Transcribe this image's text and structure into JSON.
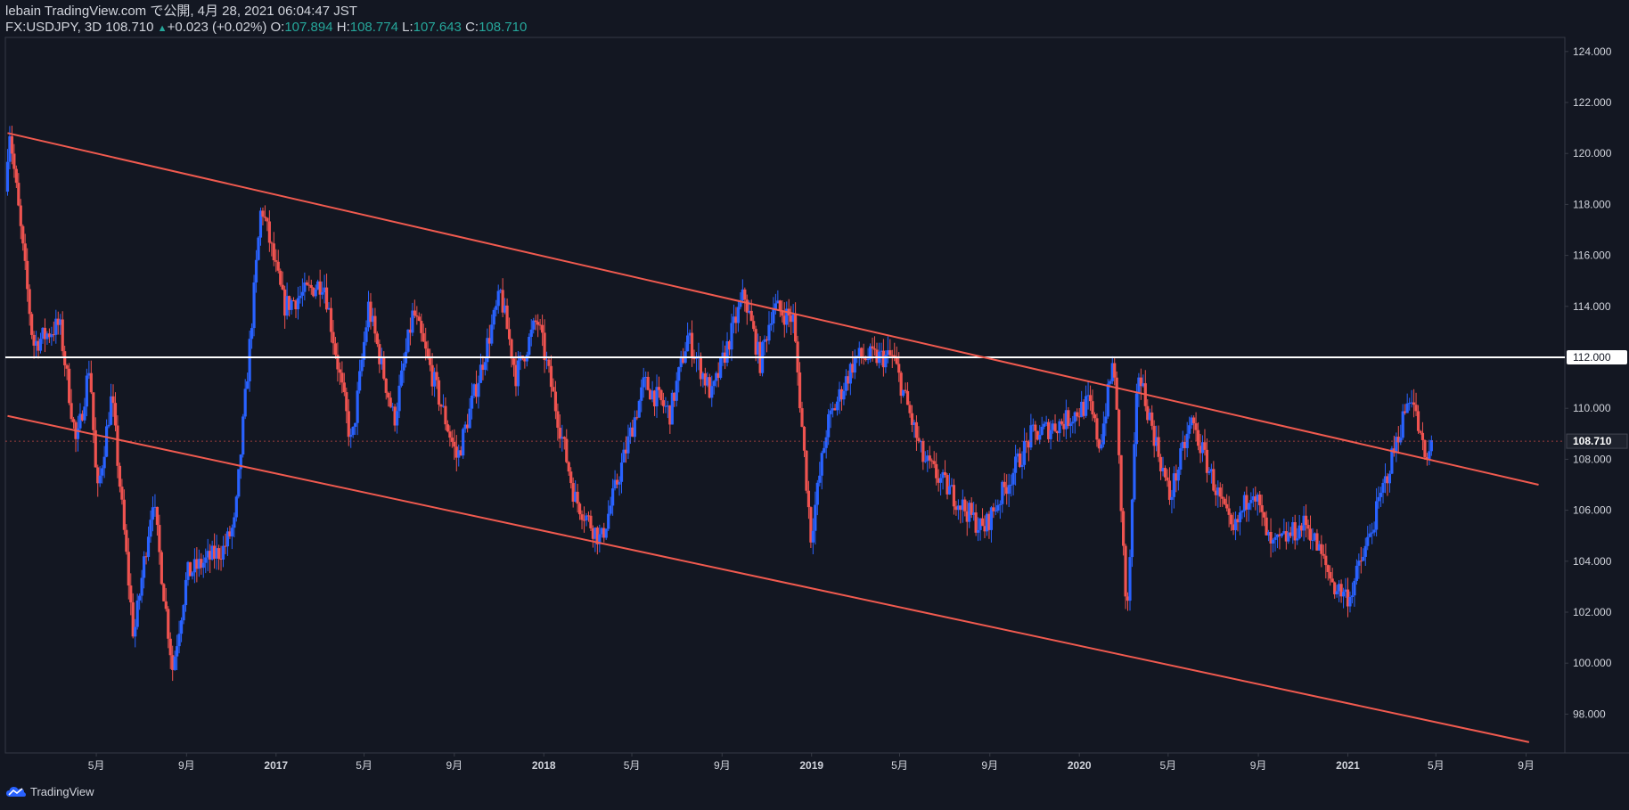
{
  "header": {
    "published_line": "lebain TradingView.com で公開, 4月 28, 2021 06:04:47 JST",
    "symbol": "FX:USDJPY, 3D",
    "last": "108.710",
    "change_arrow": "▲",
    "change": "+0.023 (+0.02%)",
    "o_label": "O:",
    "o_value": "107.894",
    "h_label": "H:",
    "h_value": "108.774",
    "l_label": "L:",
    "l_value": "107.643",
    "c_label": "C:",
    "c_value": "108.710"
  },
  "footer": {
    "brand": "TradingView",
    "logo_icon": "tradingview-cloud-icon"
  },
  "colors": {
    "background": "#131722",
    "up": "#2962ff",
    "down": "#ef5350",
    "channel": "#f05a4f",
    "level": "#ffffff",
    "text": "#d1d4dc",
    "axis": "#363a45"
  },
  "chart_data": {
    "type": "candlestick",
    "symbol": "FX:USDJPY",
    "timeframe": "3D",
    "x_ticks": [
      "5月",
      "9月",
      "2017",
      "5月",
      "9月",
      "2018",
      "5月",
      "9月",
      "2019",
      "5月",
      "9月",
      "2020",
      "5月",
      "9月",
      "2021",
      "5月",
      "9月"
    ],
    "y_ticks": [
      98,
      100,
      102,
      104,
      106,
      108,
      110,
      112,
      114,
      116,
      118,
      120,
      122,
      124
    ],
    "ylim": [
      96.9,
      125.0
    ],
    "last_price_label": "108.710",
    "horizontal_level": {
      "price": 112.0,
      "label": "112.000"
    },
    "channel_lines": [
      {
        "name": "upper",
        "points": [
          [
            "2016-01-01",
            120.8
          ],
          [
            "2021-09-18",
            107.0
          ]
        ]
      },
      {
        "name": "lower",
        "points": [
          [
            "2016-01-01",
            109.7
          ],
          [
            "2021-09-05",
            96.9
          ]
        ]
      }
    ],
    "price_path": [
      [
        "2016-01-01",
        118.5
      ],
      [
        "2016-01-06",
        121.2
      ],
      [
        "2016-02-08",
        112.5
      ],
      [
        "2016-03-15",
        113.3
      ],
      [
        "2016-04-07",
        108.5
      ],
      [
        "2016-04-25",
        111.8
      ],
      [
        "2016-05-05",
        106.5
      ],
      [
        "2016-05-25",
        110.5
      ],
      [
        "2016-06-24",
        101.0
      ],
      [
        "2016-07-20",
        106.5
      ],
      [
        "2016-08-16",
        99.8
      ],
      [
        "2016-09-05",
        103.5
      ],
      [
        "2016-10-25",
        104.5
      ],
      [
        "2016-11-09",
        105.5
      ],
      [
        "2016-12-15",
        118.0
      ],
      [
        "2017-01-15",
        114.0
      ],
      [
        "2017-03-10",
        115.0
      ],
      [
        "2017-04-17",
        108.5
      ],
      [
        "2017-05-10",
        114.0
      ],
      [
        "2017-06-14",
        109.5
      ],
      [
        "2017-07-10",
        113.8
      ],
      [
        "2017-09-08",
        108.0
      ],
      [
        "2017-11-06",
        114.5
      ],
      [
        "2017-11-27",
        111.3
      ],
      [
        "2017-12-26",
        113.5
      ],
      [
        "2018-02-15",
        106.5
      ],
      [
        "2018-03-23",
        104.8
      ],
      [
        "2018-05-21",
        111.0
      ],
      [
        "2018-06-25",
        109.8
      ],
      [
        "2018-07-19",
        112.8
      ],
      [
        "2018-08-21",
        110.5
      ],
      [
        "2018-10-04",
        114.5
      ],
      [
        "2018-10-26",
        111.8
      ],
      [
        "2018-11-12",
        114.0
      ],
      [
        "2018-12-10",
        113.5
      ],
      [
        "2019-01-03",
        105.0
      ],
      [
        "2019-01-25",
        109.3
      ],
      [
        "2019-03-05",
        112.0
      ],
      [
        "2019-04-25",
        112.0
      ],
      [
        "2019-06-05",
        108.0
      ],
      [
        "2019-08-26",
        105.2
      ],
      [
        "2019-10-30",
        108.9
      ],
      [
        "2019-12-15",
        109.5
      ],
      [
        "2020-01-17",
        110.2
      ],
      [
        "2020-02-01",
        108.5
      ],
      [
        "2020-02-20",
        112.0
      ],
      [
        "2020-03-09",
        101.5
      ],
      [
        "2020-03-24",
        111.5
      ],
      [
        "2020-05-06",
        106.5
      ],
      [
        "2020-06-05",
        109.5
      ],
      [
        "2020-07-31",
        105.0
      ],
      [
        "2020-08-27",
        107.0
      ],
      [
        "2020-09-21",
        104.5
      ],
      [
        "2020-11-09",
        105.5
      ],
      [
        "2020-12-17",
        103.0
      ],
      [
        "2021-01-06",
        102.6
      ],
      [
        "2021-02-03",
        105.0
      ],
      [
        "2021-03-31",
        110.7
      ],
      [
        "2021-04-15",
        108.5
      ],
      [
        "2021-04-23",
        107.7
      ],
      [
        "2021-04-27",
        108.7
      ]
    ]
  }
}
